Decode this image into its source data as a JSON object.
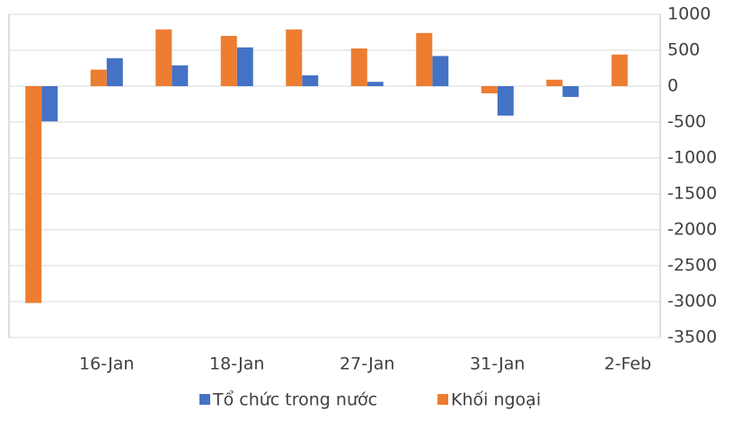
{
  "chart_data": {
    "type": "bar",
    "categories": [
      null,
      "16-Jan",
      null,
      "18-Jan",
      null,
      "27-Jan",
      null,
      "31-Jan",
      null,
      "2-Feb"
    ],
    "series": [
      {
        "name": "Tổ chức trong nước",
        "color": "#4472c4",
        "values": [
          -490,
          390,
          290,
          540,
          150,
          60,
          420,
          -410,
          -150,
          0
        ]
      },
      {
        "name": "Khối ngoại",
        "color": "#ed7d31",
        "values": [
          -3020,
          230,
          790,
          700,
          790,
          525,
          740,
          -100,
          90,
          440
        ]
      }
    ],
    "ylim": [
      -3500,
      1000
    ],
    "yticks": [
      1000,
      500,
      0,
      -500,
      -1000,
      -1500,
      -2000,
      -2500,
      -3000,
      -3500
    ],
    "grid": true
  }
}
